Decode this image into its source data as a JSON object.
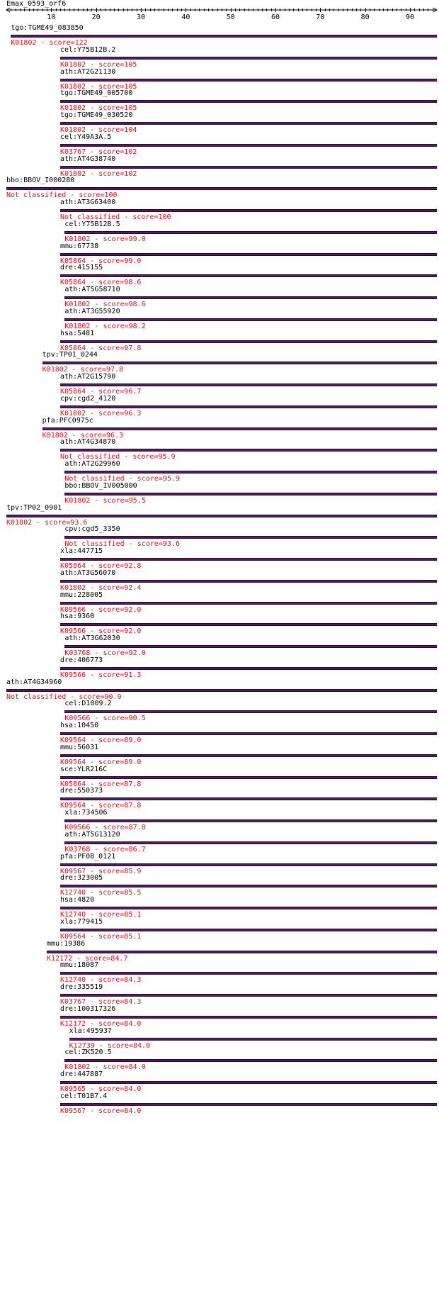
{
  "query": "Emax_0593_orf6",
  "ruler": {
    "min": 0,
    "max": 96,
    "ticks": [
      10,
      20,
      30,
      40,
      50,
      60,
      70,
      80,
      90
    ]
  },
  "colors": {
    "bar": "#5a1a5f",
    "bar_edge": "#1c0a30",
    "score_text": "#e8111b",
    "label_text": "#000000"
  },
  "hits": [
    {
      "name": "tgo:TGME49_083850",
      "label": "K01802 - score=122",
      "start": 1,
      "end": 96
    },
    {
      "name": "cel:Y75B12B.2",
      "label": "K01802 - score=105",
      "start": 12,
      "end": 96
    },
    {
      "name": "ath:AT2G21130",
      "label": "K01802 - score=105",
      "start": 12,
      "end": 96
    },
    {
      "name": "tgo:TGME49_005700",
      "label": "K01802 - score=105",
      "start": 12,
      "end": 96
    },
    {
      "name": "tgo:TGME49_030520",
      "label": "K01802 - score=104",
      "start": 12,
      "end": 96
    },
    {
      "name": "cel:Y49A3A.5",
      "label": "K03767 - score=102",
      "start": 12,
      "end": 96
    },
    {
      "name": "ath:AT4G38740",
      "label": "K01802 - score=102",
      "start": 12,
      "end": 96
    },
    {
      "name": "bbo:BBOV_I000280",
      "label": "Not classified - score=100",
      "start": 0,
      "end": 96
    },
    {
      "name": "ath:AT3G63400",
      "label": "Not classified - score=100",
      "start": 12,
      "end": 96
    },
    {
      "name": "cel:Y75B12B.5",
      "label": "K01802 - score=99.0",
      "start": 13,
      "end": 96
    },
    {
      "name": "mmu:67738",
      "label": "K05864 - score=99.0",
      "start": 12,
      "end": 96
    },
    {
      "name": "dre:415155",
      "label": "K05864 - score=98.6",
      "start": 12,
      "end": 96
    },
    {
      "name": "ath:AT5G58710",
      "label": "K01802 - score=98.6",
      "start": 13,
      "end": 96
    },
    {
      "name": "ath:AT3G55920",
      "label": "K01802 - score=98.2",
      "start": 13,
      "end": 96
    },
    {
      "name": "hsa:5481",
      "label": "K05864 - score=97.8",
      "start": 12,
      "end": 96
    },
    {
      "name": "tpv:TP01_0244",
      "label": "K01802 - score=97.8",
      "start": 8,
      "end": 96
    },
    {
      "name": "ath:AT2G15790",
      "label": "K05864 - score=96.7",
      "start": 12,
      "end": 96
    },
    {
      "name": "cpv:cgd2_4120",
      "label": "K01802 - score=96.3",
      "start": 12,
      "end": 96
    },
    {
      "name": "pfa:PFC0975c",
      "label": "K01802 - score=96.3",
      "start": 8,
      "end": 96
    },
    {
      "name": "ath:AT4G34870",
      "label": "Not classified - score=95.9",
      "start": 12,
      "end": 96
    },
    {
      "name": "ath:AT2G29960",
      "label": "Not classified - score=95.9",
      "start": 13,
      "end": 96
    },
    {
      "name": "bbo:BBOV_IV005000",
      "label": "K01802 - score=95.5",
      "start": 13,
      "end": 96
    },
    {
      "name": "tpv:TP02_0901",
      "label": "K01802 - score=93.6",
      "start": 0,
      "end": 96
    },
    {
      "name": "cpv:cgd5_3350",
      "label": "Not classified - score=93.6",
      "start": 13,
      "end": 96
    },
    {
      "name": "xla:447715",
      "label": "K05864 - score=92.8",
      "start": 12,
      "end": 96
    },
    {
      "name": "ath:AT3G56070",
      "label": "K01802 - score=92.4",
      "start": 12,
      "end": 96
    },
    {
      "name": "mmu:228005",
      "label": "K09566 - score=92.0",
      "start": 12,
      "end": 96
    },
    {
      "name": "hsa:9360",
      "label": "K09566 - score=92.0",
      "start": 12,
      "end": 96
    },
    {
      "name": "ath:AT3G62030",
      "label": "K03768 - score=92.0",
      "start": 13,
      "end": 96
    },
    {
      "name": "dre:406773",
      "label": "K09566 - score=91.3",
      "start": 12,
      "end": 96
    },
    {
      "name": "ath:AT4G34960",
      "label": "Not classified - score=90.9",
      "start": 0,
      "end": 96
    },
    {
      "name": "cel:D1009.2",
      "label": "K09566 - score=90.5",
      "start": 13,
      "end": 96
    },
    {
      "name": "hsa:10450",
      "label": "K09564 - score=89.0",
      "start": 12,
      "end": 96
    },
    {
      "name": "mmu:56031",
      "label": "K09564 - score=89.0",
      "start": 12,
      "end": 96
    },
    {
      "name": "sce:YLR216C",
      "label": "K05864 - score=87.8",
      "start": 12,
      "end": 96
    },
    {
      "name": "dre:550373",
      "label": "K09564 - score=87.8",
      "start": 12,
      "end": 96
    },
    {
      "name": "xla:734506",
      "label": "K09566 - score=87.8",
      "start": 13,
      "end": 96
    },
    {
      "name": "ath:AT5G13120",
      "label": "K03768 - score=86.7",
      "start": 13,
      "end": 96
    },
    {
      "name": "pfa:PF08_0121",
      "label": "K09567 - score=85.9",
      "start": 12,
      "end": 96
    },
    {
      "name": "dre:323005",
      "label": "K12740 - score=85.5",
      "start": 12,
      "end": 96
    },
    {
      "name": "hsa:4820",
      "label": "K12740 - score=85.1",
      "start": 12,
      "end": 96
    },
    {
      "name": "xla:779415",
      "label": "K09564 - score=85.1",
      "start": 12,
      "end": 96
    },
    {
      "name": "mmu:19386",
      "label": "K12172 - score=84.7",
      "start": 9,
      "end": 96
    },
    {
      "name": "mmu:18087",
      "label": "K12740 - score=84.3",
      "start": 12,
      "end": 96
    },
    {
      "name": "dre:335519",
      "label": "K03767 - score=84.3",
      "start": 12,
      "end": 96
    },
    {
      "name": "dre:100317326",
      "label": "K12172 - score=84.0",
      "start": 12,
      "end": 96
    },
    {
      "name": "xla:495937",
      "label": "K12739 - score=84.0",
      "start": 14,
      "end": 96
    },
    {
      "name": "cel:ZK520.5",
      "label": "K01802 - score=84.0",
      "start": 13,
      "end": 96
    },
    {
      "name": "dre:447887",
      "label": "K09565 - score=84.0",
      "start": 12,
      "end": 96
    },
    {
      "name": "cel:T01B7.4",
      "label": "K09567 - score=84.0",
      "start": 12,
      "end": 96
    }
  ]
}
